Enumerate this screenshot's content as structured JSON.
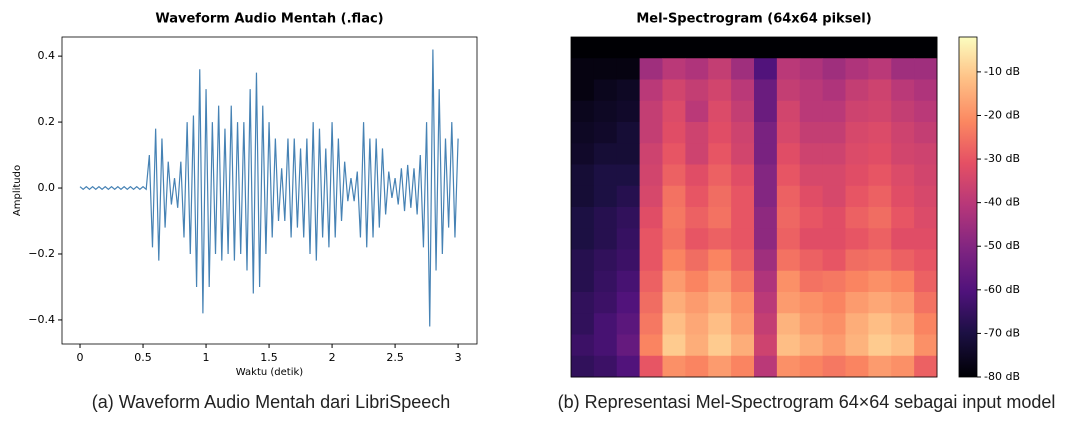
{
  "chart_data": [
    {
      "type": "line",
      "title": "Waveform Audio Mentah (.flac)",
      "xlabel": "Waktu (detik)",
      "ylabel": "Amplitudo",
      "color": "#4682b4",
      "caption": "(a) Waveform Audio Mentah dari LibriSpeech",
      "xlim": [
        -0.143,
        3.15
      ],
      "ylim": [
        -0.473,
        0.458
      ],
      "xticks": [
        0,
        0.5,
        1,
        1.5,
        2,
        2.5,
        3
      ],
      "yticks": [
        {
          "value": -0.4,
          "label": "−0.4"
        },
        {
          "value": -0.2,
          "label": "−0.2"
        },
        {
          "value": 0,
          "label": "0.0"
        },
        0.2,
        0.4
      ],
      "x": [
        0,
        0.025,
        0.05,
        0.075,
        0.1,
        0.125,
        0.15,
        0.175,
        0.2,
        0.225,
        0.25,
        0.275,
        0.3,
        0.325,
        0.35,
        0.375,
        0.4,
        0.425,
        0.45,
        0.475,
        0.5,
        0.525,
        0.55,
        0.575,
        0.6,
        0.625,
        0.65,
        0.675,
        0.7,
        0.725,
        0.75,
        0.775,
        0.8,
        0.825,
        0.85,
        0.875,
        0.9,
        0.925,
        0.95,
        0.975,
        1,
        1.025,
        1.05,
        1.075,
        1.1,
        1.125,
        1.15,
        1.175,
        1.2,
        1.225,
        1.25,
        1.275,
        1.3,
        1.325,
        1.35,
        1.375,
        1.4,
        1.425,
        1.45,
        1.475,
        1.5,
        1.525,
        1.55,
        1.575,
        1.6,
        1.625,
        1.65,
        1.675,
        1.7,
        1.725,
        1.75,
        1.775,
        1.8,
        1.825,
        1.85,
        1.875,
        1.9,
        1.925,
        1.95,
        1.975,
        2,
        2.025,
        2.05,
        2.075,
        2.1,
        2.125,
        2.15,
        2.175,
        2.2,
        2.225,
        2.25,
        2.275,
        2.3,
        2.325,
        2.35,
        2.375,
        2.4,
        2.425,
        2.45,
        2.475,
        2.5,
        2.525,
        2.55,
        2.575,
        2.6,
        2.625,
        2.65,
        2.675,
        2.7,
        2.725,
        2.75,
        2.775,
        2.8,
        2.825,
        2.85,
        2.875,
        2.9,
        2.925,
        2.95,
        2.975,
        3
      ],
      "values": [
        0.004,
        -0.004,
        0.004,
        -0.004,
        0.004,
        -0.004,
        0.004,
        -0.004,
        0.004,
        -0.004,
        0.004,
        -0.004,
        0.004,
        -0.004,
        0.004,
        -0.004,
        0.004,
        -0.004,
        0.004,
        -0.004,
        0.004,
        -0.004,
        0.1,
        -0.18,
        0.18,
        -0.22,
        0.15,
        -0.12,
        0.08,
        -0.05,
        0.03,
        -0.06,
        0.08,
        -0.15,
        0.2,
        -0.2,
        0.22,
        -0.3,
        0.36,
        -0.38,
        0.3,
        -0.3,
        0.2,
        -0.2,
        0.25,
        -0.22,
        0.18,
        -0.2,
        0.25,
        -0.22,
        0.2,
        -0.2,
        0.2,
        -0.25,
        0.3,
        -0.32,
        0.35,
        -0.3,
        0.25,
        -0.2,
        0.2,
        -0.15,
        0.15,
        -0.1,
        0.06,
        -0.1,
        0.15,
        -0.15,
        0.15,
        -0.12,
        0.12,
        -0.15,
        0.15,
        -0.2,
        0.2,
        -0.22,
        0.18,
        -0.15,
        0.12,
        -0.18,
        0.2,
        -0.15,
        0.15,
        -0.1,
        0.08,
        -0.04,
        0.03,
        -0.04,
        0.05,
        -0.15,
        0.2,
        -0.18,
        0.15,
        -0.15,
        0.15,
        -0.12,
        0.12,
        -0.08,
        0.05,
        -0.03,
        0.03,
        -0.05,
        0.06,
        -0.07,
        0.07,
        -0.06,
        0.06,
        -0.08,
        0.1,
        -0.18,
        0.2,
        -0.42,
        0.42,
        -0.25,
        0.3,
        -0.2,
        0.15,
        -0.12,
        0.2,
        -0.15,
        0.15
      ]
    },
    {
      "type": "heatmap",
      "title": "Mel-Spectrogram (64x64 piksel)",
      "colormap": "magma",
      "caption": "(b) Representasi Mel-Spectrogram 64×64 sebagai input model",
      "zlim": [
        -80,
        -2
      ],
      "zticks": [
        {
          "value": -10,
          "label": "-10 dB"
        },
        {
          "value": -20,
          "label": "-20 dB"
        },
        {
          "value": -30,
          "label": "-30 dB"
        },
        {
          "value": -40,
          "label": "-40 dB"
        },
        {
          "value": -50,
          "label": "-50 dB"
        },
        {
          "value": -60,
          "label": "-60 dB"
        },
        {
          "value": -70,
          "label": "-70 dB"
        },
        {
          "value": -80,
          "label": "-80 dB"
        }
      ],
      "values": [
        [
          -80,
          -80,
          -80,
          -80,
          -80,
          -80,
          -80,
          -80,
          -80,
          -80,
          -80,
          -80,
          -80,
          -80,
          -80,
          -80
        ],
        [
          -78,
          -78,
          -78,
          -45,
          -40,
          -42,
          -38,
          -45,
          -60,
          -40,
          -42,
          -45,
          -42,
          -40,
          -45,
          -45
        ],
        [
          -78,
          -76,
          -75,
          -40,
          -35,
          -38,
          -35,
          -40,
          -55,
          -38,
          -40,
          -42,
          -38,
          -36,
          -40,
          -42
        ],
        [
          -76,
          -75,
          -74,
          -38,
          -33,
          -40,
          -33,
          -38,
          -55,
          -35,
          -40,
          -40,
          -36,
          -35,
          -38,
          -40
        ],
        [
          -75,
          -74,
          -72,
          -38,
          -32,
          -36,
          -32,
          -36,
          -52,
          -34,
          -38,
          -38,
          -34,
          -33,
          -36,
          -38
        ],
        [
          -74,
          -72,
          -72,
          -36,
          -30,
          -36,
          -30,
          -35,
          -52,
          -32,
          -36,
          -36,
          -33,
          -32,
          -35,
          -36
        ],
        [
          -72,
          -70,
          -70,
          -35,
          -28,
          -32,
          -28,
          -32,
          -50,
          -30,
          -34,
          -34,
          -32,
          -30,
          -33,
          -35
        ],
        [
          -72,
          -70,
          -68,
          -34,
          -25,
          -30,
          -26,
          -30,
          -50,
          -28,
          -32,
          -34,
          -30,
          -28,
          -32,
          -34
        ],
        [
          -70,
          -68,
          -66,
          -32,
          -24,
          -28,
          -25,
          -30,
          -48,
          -27,
          -30,
          -32,
          -28,
          -26,
          -30,
          -33
        ],
        [
          -70,
          -68,
          -65,
          -30,
          -25,
          -30,
          -28,
          -30,
          -48,
          -28,
          -32,
          -32,
          -30,
          -28,
          -32,
          -32
        ],
        [
          -68,
          -66,
          -64,
          -30,
          -22,
          -26,
          -22,
          -28,
          -45,
          -25,
          -28,
          -30,
          -26,
          -25,
          -28,
          -30
        ],
        [
          -68,
          -65,
          -62,
          -28,
          -18,
          -22,
          -18,
          -24,
          -42,
          -20,
          -25,
          -24,
          -22,
          -20,
          -22,
          -28
        ],
        [
          -66,
          -64,
          -60,
          -26,
          -15,
          -18,
          -15,
          -20,
          -40,
          -18,
          -20,
          -22,
          -18,
          -16,
          -18,
          -25
        ],
        [
          -66,
          -62,
          -58,
          -24,
          -12,
          -16,
          -12,
          -18,
          -38,
          -14,
          -18,
          -20,
          -15,
          -12,
          -15,
          -22
        ],
        [
          -64,
          -62,
          -56,
          -22,
          -10,
          -15,
          -10,
          -15,
          -36,
          -12,
          -15,
          -18,
          -14,
          -10,
          -12,
          -20
        ],
        [
          -66,
          -64,
          -60,
          -30,
          -20,
          -22,
          -18,
          -22,
          -40,
          -20,
          -22,
          -24,
          -22,
          -18,
          -20,
          -28
        ]
      ]
    }
  ]
}
